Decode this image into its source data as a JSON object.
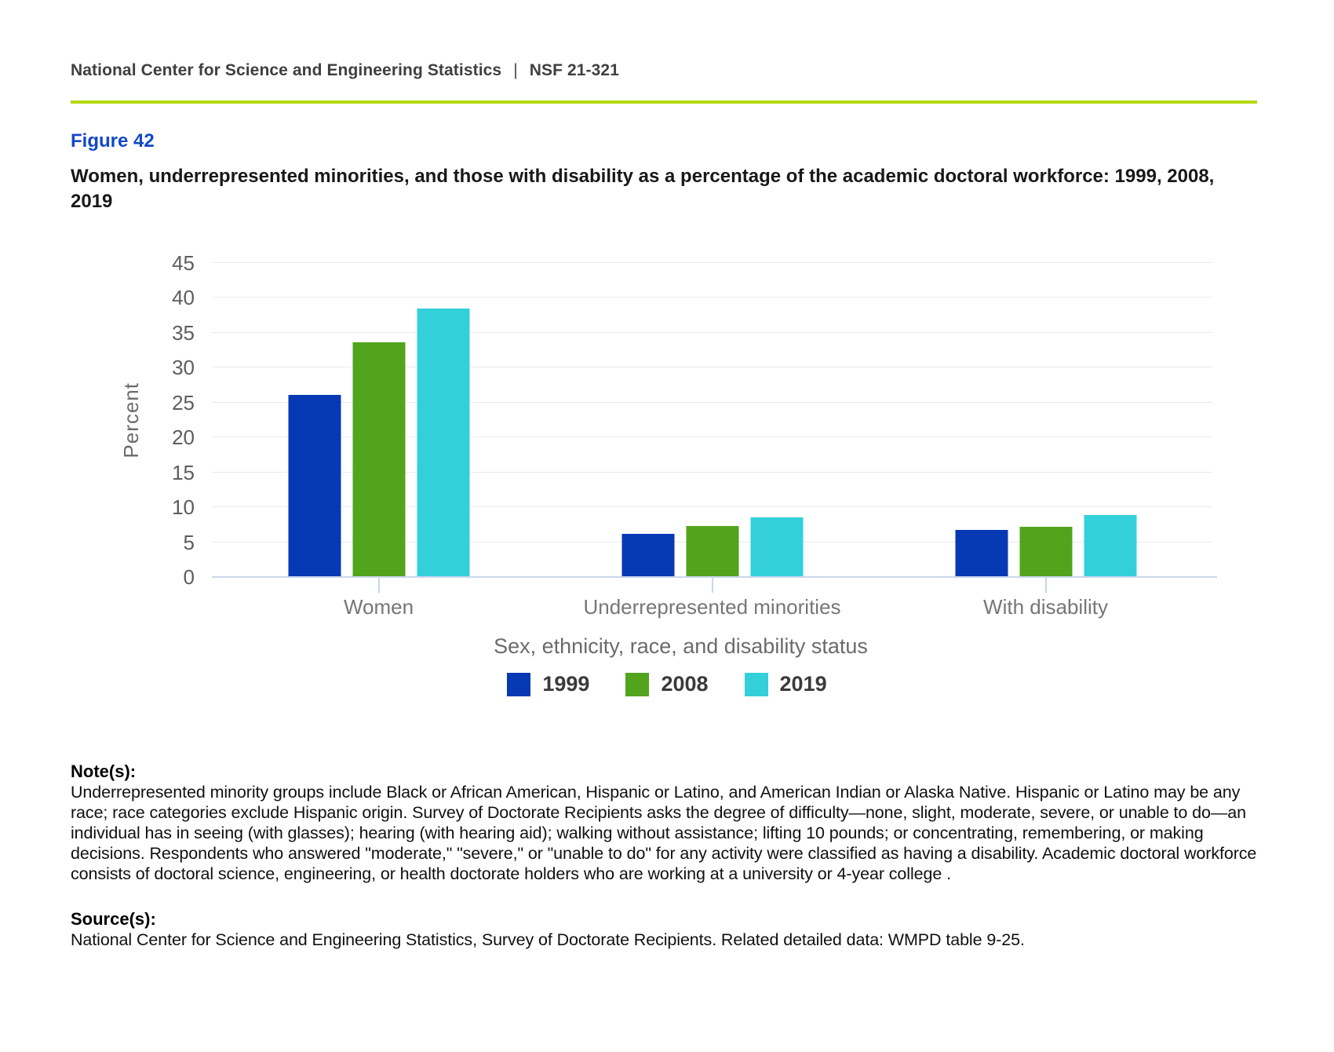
{
  "header": {
    "left": "National Center for Science and Engineering Statistics",
    "separator": "|",
    "right": "NSF 21-321"
  },
  "figure": {
    "label": "Figure 42",
    "title": "Women, underrepresented minorities, and those with disability as a percentage of the academic doctoral workforce: 1999, 2008, 2019"
  },
  "chart_data": {
    "type": "bar",
    "categories": [
      "Women",
      "Underrepresented minorities",
      "With disability"
    ],
    "series": [
      {
        "name": "1999",
        "color": "#0839b4",
        "values": [
          26.1,
          6.2,
          6.8
        ]
      },
      {
        "name": "2008",
        "color": "#52a41d",
        "values": [
          33.6,
          7.3,
          7.2
        ]
      },
      {
        "name": "2019",
        "color": "#33d0d9",
        "values": [
          38.5,
          8.6,
          8.9
        ]
      }
    ],
    "title": "",
    "xlabel": "Sex, ethnicity, race, and disability status",
    "ylabel": "Percent",
    "ylim": [
      0,
      45
    ],
    "yticks": [
      0,
      5,
      10,
      15,
      20,
      25,
      30,
      35,
      40,
      45
    ],
    "grid": "horizontal",
    "legend_position": "bottom"
  },
  "notes": {
    "heading": "Note(s):",
    "body": "Underrepresented minority groups include Black or African American, Hispanic or Latino, and American Indian or Alaska Native. Hispanic or Latino may be any race; race categories exclude Hispanic origin. Survey of Doctorate Recipients asks the degree of difficulty—none, slight, moderate, severe, or unable to do—an individual has in seeing (with glasses); hearing (with hearing aid); walking without assistance; lifting 10 pounds; or concentrating, remembering, or making decisions. Respondents who answered \"moderate,\" \"severe,\" or \"unable to do\" for any activity were classified as having a disability. Academic doctoral workforce consists of doctoral science, engineering, or health doctorate holders who are working at a university or 4-year college ."
  },
  "sources": {
    "heading": "Source(s):",
    "body": "National Center for Science and Engineering Statistics, Survey of Doctorate Recipients. Related detailed data: WMPD table 9-25."
  },
  "colors": {
    "rule": "#b3d80e",
    "figure_label": "#1348c8",
    "gridline": "#e9eaec",
    "axis_line": "#cbd7ec"
  }
}
